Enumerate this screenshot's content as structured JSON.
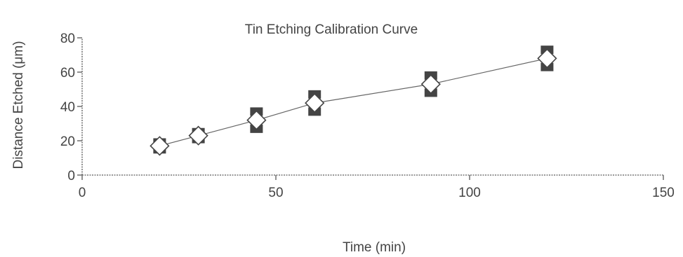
{
  "chart_data": {
    "type": "scatter",
    "title": "Tin Etching Calibration Curve",
    "xlabel": "Time (min)",
    "ylabel": "Distance Etched (μm)",
    "xlim": [
      0,
      150
    ],
    "ylim": [
      0,
      80
    ],
    "xticks": [
      0,
      50,
      100,
      150
    ],
    "yticks": [
      0,
      20,
      40,
      60,
      80
    ],
    "series": [
      {
        "x": [
          20,
          30,
          45,
          60,
          90,
          120
        ],
        "y": [
          17,
          23,
          32,
          42,
          53,
          68
        ],
        "line": true
      }
    ],
    "error_bars": [
      {
        "x": 20,
        "low": 15,
        "high": 19
      },
      {
        "x": 30,
        "low": 21,
        "high": 25
      },
      {
        "x": 45,
        "low": 27,
        "high": 37
      },
      {
        "x": 60,
        "low": 37,
        "high": 47
      },
      {
        "x": 90,
        "low": 48,
        "high": 58
      },
      {
        "x": 120,
        "low": 63,
        "high": 73
      }
    ],
    "grid": false,
    "marker": "diamond",
    "colors": {
      "axis": "#777777",
      "text": "#444444",
      "marker_fill": "#ffffff",
      "error_marker": "#444444"
    }
  }
}
